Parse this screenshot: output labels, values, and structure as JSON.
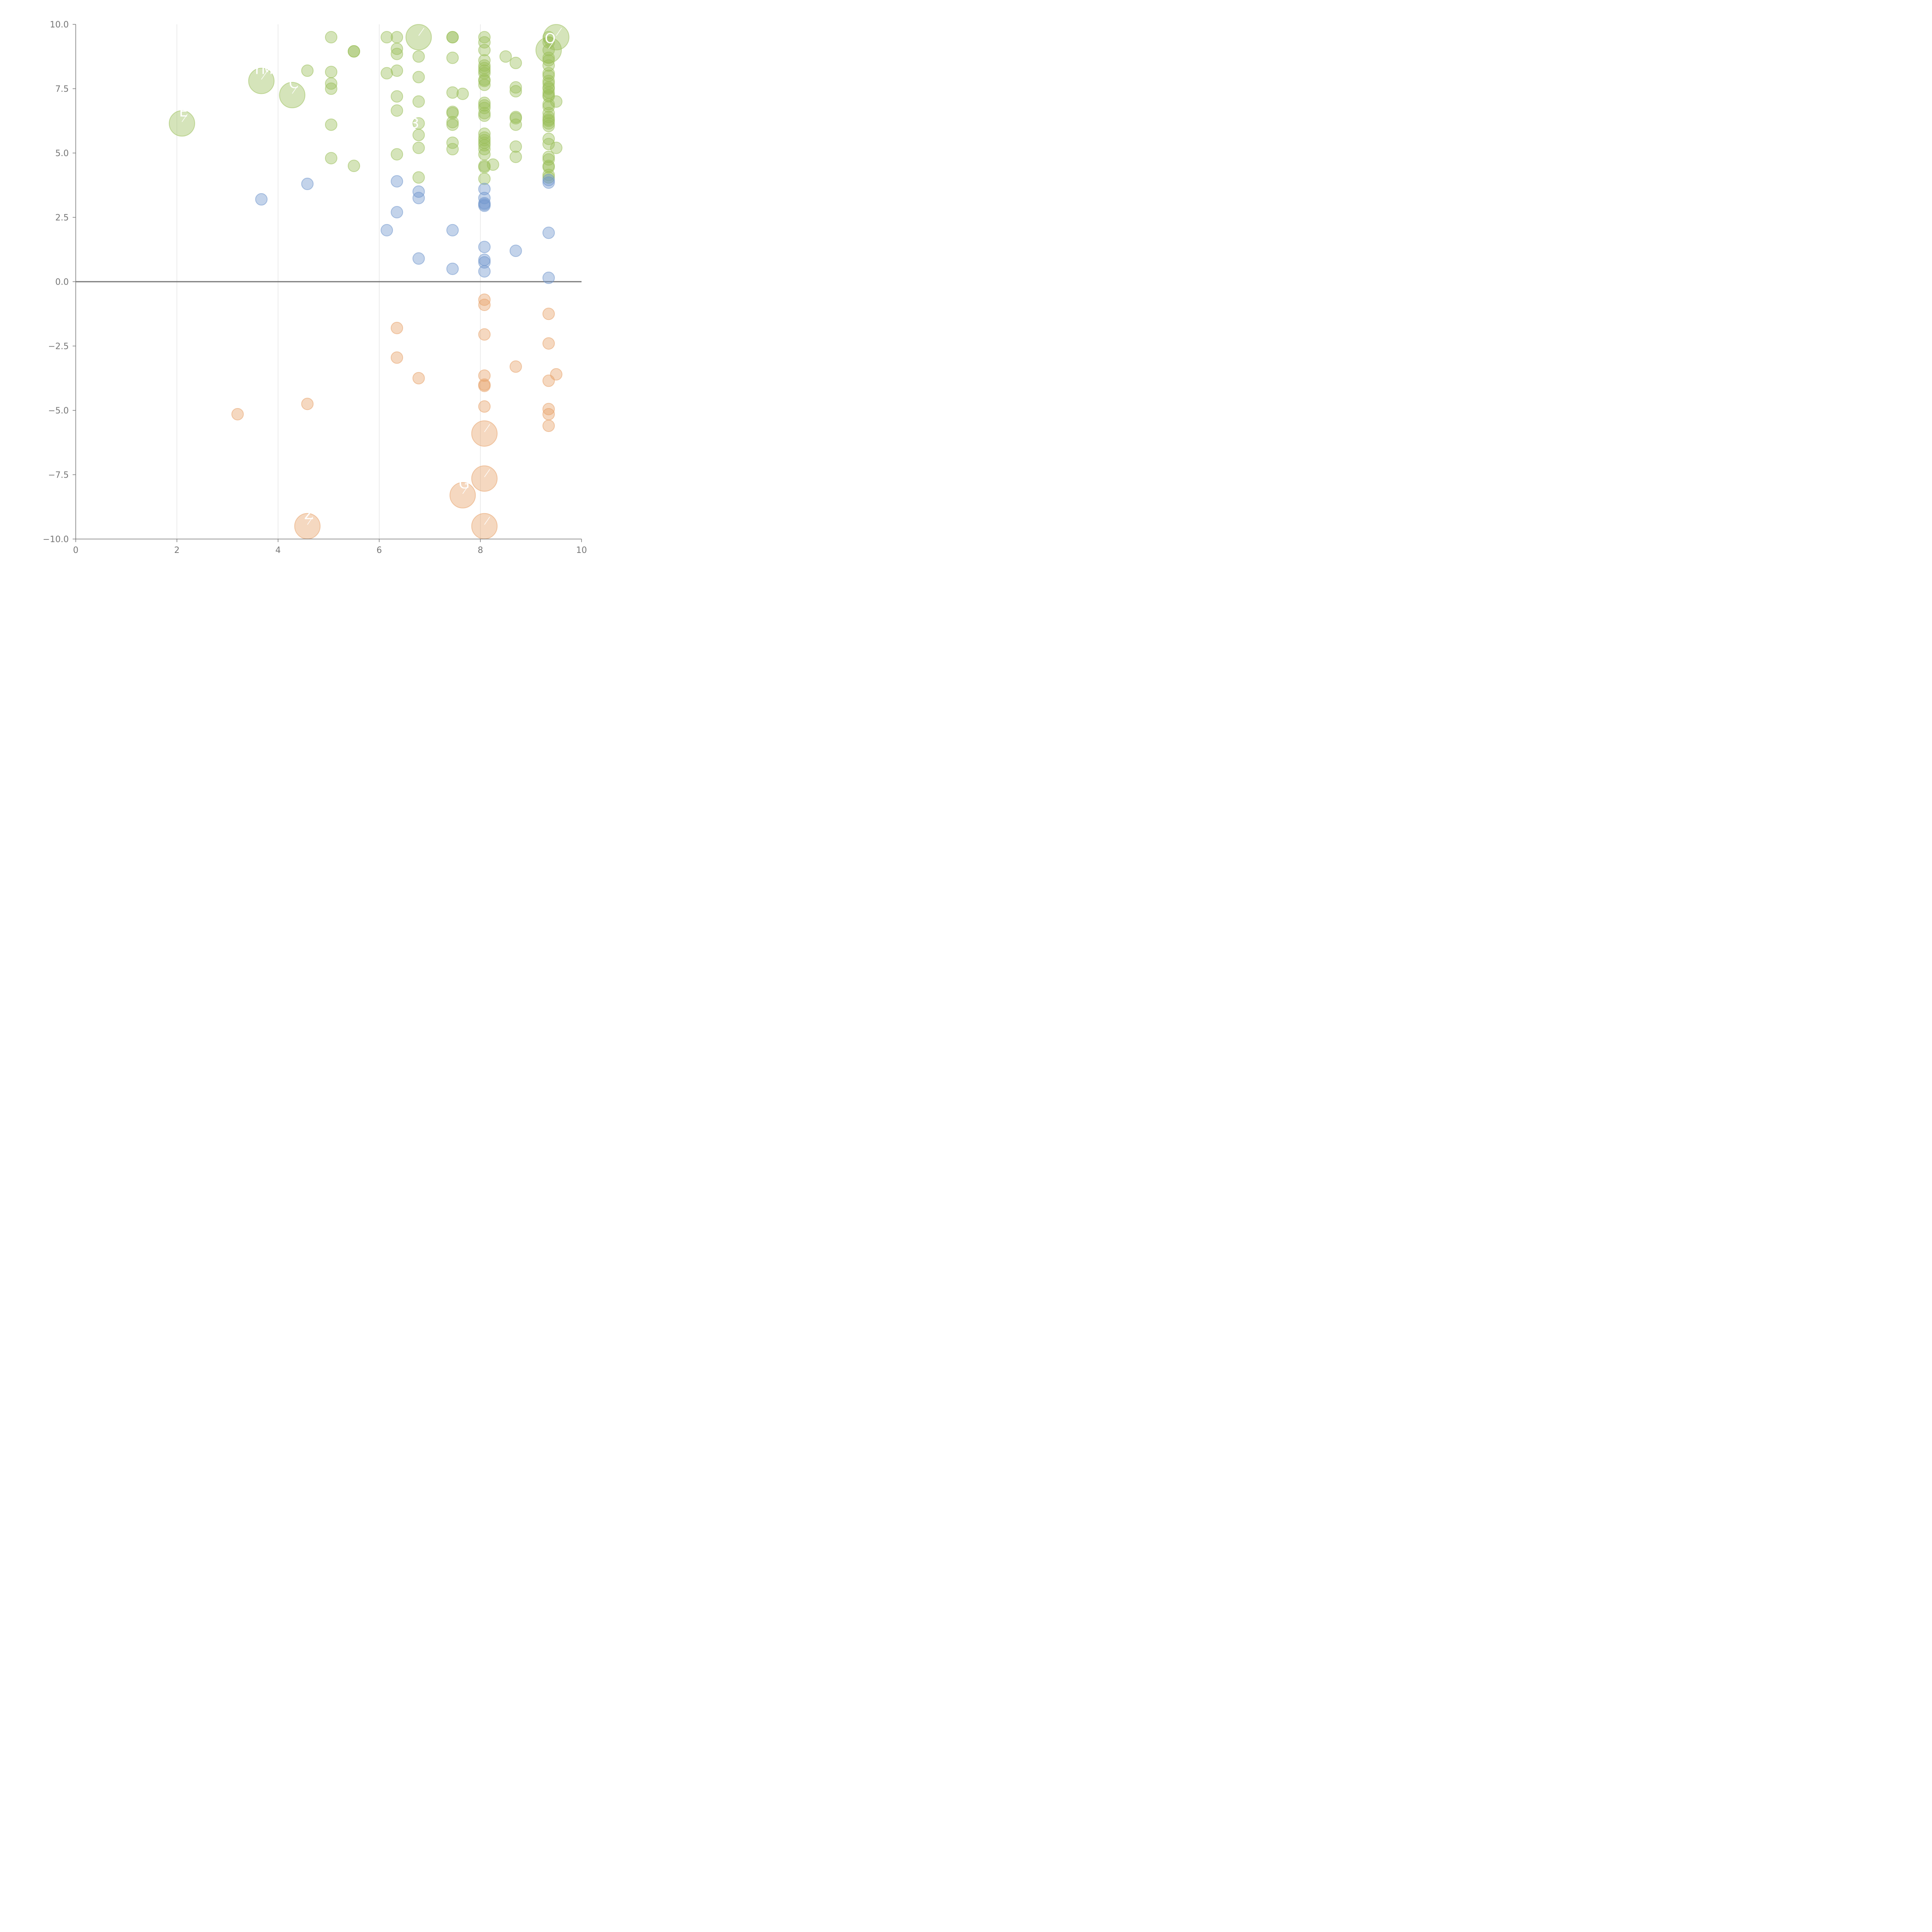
{
  "chart_data": {
    "type": "scatter",
    "title": "",
    "xlabel": "",
    "ylabel": "",
    "xlim": [
      0,
      10
    ],
    "ylim": [
      -10,
      10
    ],
    "x_ticks": [
      0,
      2,
      4,
      6,
      8,
      10
    ],
    "y_ticks": [
      -10,
      -7.5,
      -5,
      -2.5,
      0,
      2.5,
      5,
      7.5,
      10
    ],
    "x_tick_labels": [
      "0",
      "2",
      "4",
      "6",
      "8",
      "10"
    ],
    "y_tick_labels": [
      "−10.0",
      "−7.5",
      "−5.0",
      "−2.5",
      "0.0",
      "2.5",
      "5.0",
      "7.5",
      "10.0"
    ],
    "vertical_gridlines": [
      2,
      4,
      6,
      8
    ],
    "reference_line_y": 0,
    "series": [
      {
        "name": "green",
        "color": "#9bbf5a",
        "points": [
          [
            5.05,
            9.5
          ],
          [
            5.5,
            8.95
          ],
          [
            5.5,
            8.95
          ],
          [
            6.15,
            9.5
          ],
          [
            6.35,
            9.5
          ],
          [
            6.35,
            9.05
          ],
          [
            6.35,
            8.85
          ],
          [
            7.45,
            9.5
          ],
          [
            7.45,
            9.5
          ],
          [
            7.45,
            8.7
          ],
          [
            8.08,
            9.5
          ],
          [
            8.08,
            9.3
          ],
          [
            8.08,
            9.0
          ],
          [
            8.08,
            8.6
          ],
          [
            8.08,
            8.4
          ],
          [
            8.08,
            8.3
          ],
          [
            8.08,
            8.2
          ],
          [
            8.08,
            8.1
          ],
          [
            8.08,
            7.85
          ],
          [
            8.08,
            7.8
          ],
          [
            8.08,
            7.65
          ],
          [
            8.5,
            8.75
          ],
          [
            8.7,
            8.5
          ],
          [
            9.35,
            9.5
          ],
          [
            9.35,
            9.3
          ],
          [
            9.35,
            9.0
          ],
          [
            9.35,
            8.7
          ],
          [
            9.35,
            8.6
          ],
          [
            9.35,
            8.4
          ],
          [
            9.35,
            8.1
          ],
          [
            9.35,
            8.0
          ],
          [
            9.35,
            7.8
          ],
          [
            9.35,
            7.7
          ],
          [
            9.35,
            7.55
          ],
          [
            9.35,
            7.5
          ],
          [
            9.35,
            7.35
          ],
          [
            9.35,
            7.25
          ],
          [
            9.35,
            7.2
          ],
          [
            9.35,
            6.9
          ],
          [
            9.35,
            6.8
          ],
          [
            9.35,
            6.55
          ],
          [
            9.35,
            6.4
          ],
          [
            9.35,
            6.3
          ],
          [
            9.35,
            6.25
          ],
          [
            9.35,
            6.15
          ],
          [
            9.35,
            6.05
          ],
          [
            9.35,
            5.55
          ],
          [
            9.35,
            5.35
          ],
          [
            9.35,
            4.85
          ],
          [
            9.35,
            4.75
          ],
          [
            9.35,
            4.5
          ],
          [
            9.35,
            4.45
          ],
          [
            9.35,
            4.15
          ],
          [
            9.35,
            4.05
          ],
          [
            9.5,
            7.0
          ],
          [
            9.5,
            5.2
          ],
          [
            4.58,
            8.2
          ],
          [
            5.05,
            8.15
          ],
          [
            5.05,
            7.7
          ],
          [
            5.05,
            7.5
          ],
          [
            5.05,
            6.1
          ],
          [
            5.05,
            4.8
          ],
          [
            5.5,
            4.5
          ],
          [
            6.15,
            8.1
          ],
          [
            6.35,
            8.2
          ],
          [
            6.35,
            7.2
          ],
          [
            6.35,
            6.65
          ],
          [
            6.35,
            4.95
          ],
          [
            6.78,
            8.75
          ],
          [
            6.78,
            7.95
          ],
          [
            6.78,
            7.0
          ],
          [
            6.78,
            6.15
          ],
          [
            6.78,
            5.7
          ],
          [
            6.78,
            5.2
          ],
          [
            6.78,
            4.05
          ],
          [
            7.45,
            7.35
          ],
          [
            7.45,
            6.6
          ],
          [
            7.45,
            6.55
          ],
          [
            7.45,
            6.2
          ],
          [
            7.45,
            6.1
          ],
          [
            7.45,
            5.4
          ],
          [
            7.45,
            5.15
          ],
          [
            7.65,
            7.3
          ],
          [
            8.08,
            6.95
          ],
          [
            8.08,
            6.85
          ],
          [
            8.08,
            6.75
          ],
          [
            8.08,
            6.55
          ],
          [
            8.08,
            6.45
          ],
          [
            8.08,
            5.75
          ],
          [
            8.08,
            5.6
          ],
          [
            8.08,
            5.5
          ],
          [
            8.08,
            5.4
          ],
          [
            8.08,
            5.3
          ],
          [
            8.08,
            5.15
          ],
          [
            8.08,
            4.95
          ],
          [
            8.08,
            4.5
          ],
          [
            8.08,
            4.45
          ],
          [
            8.08,
            4.0
          ],
          [
            8.25,
            4.55
          ],
          [
            8.7,
            7.55
          ],
          [
            8.7,
            7.4
          ],
          [
            8.7,
            6.4
          ],
          [
            8.7,
            6.35
          ],
          [
            8.7,
            6.1
          ],
          [
            8.7,
            5.25
          ],
          [
            8.7,
            4.85
          ]
        ]
      },
      {
        "name": "blue",
        "color": "#6f95cc",
        "points": [
          [
            3.67,
            3.2
          ],
          [
            4.58,
            3.8
          ],
          [
            6.15,
            2.0
          ],
          [
            6.35,
            3.9
          ],
          [
            6.35,
            2.7
          ],
          [
            6.78,
            3.5
          ],
          [
            6.78,
            3.25
          ],
          [
            6.78,
            0.9
          ],
          [
            7.45,
            2.0
          ],
          [
            7.45,
            0.5
          ],
          [
            8.08,
            3.6
          ],
          [
            8.08,
            3.25
          ],
          [
            8.08,
            3.05
          ],
          [
            8.08,
            3.0
          ],
          [
            8.08,
            2.95
          ],
          [
            8.08,
            1.35
          ],
          [
            8.08,
            0.85
          ],
          [
            8.08,
            0.75
          ],
          [
            8.08,
            0.4
          ],
          [
            8.7,
            1.2
          ],
          [
            9.35,
            3.95
          ],
          [
            9.35,
            3.85
          ],
          [
            9.35,
            1.9
          ],
          [
            9.35,
            0.15
          ]
        ]
      },
      {
        "name": "orange",
        "color": "#e8a26a",
        "points": [
          [
            3.2,
            -5.15
          ],
          [
            4.58,
            -4.75
          ],
          [
            6.35,
            -1.8
          ],
          [
            6.35,
            -2.95
          ],
          [
            6.78,
            -3.75
          ],
          [
            8.08,
            -0.7
          ],
          [
            8.08,
            -0.9
          ],
          [
            8.08,
            -2.05
          ],
          [
            8.08,
            -3.65
          ],
          [
            8.08,
            -4.0
          ],
          [
            8.08,
            -4.05
          ],
          [
            8.08,
            -4.85
          ],
          [
            8.7,
            -3.3
          ],
          [
            9.35,
            -1.25
          ],
          [
            9.35,
            -2.4
          ],
          [
            9.35,
            -3.85
          ],
          [
            9.35,
            -4.95
          ],
          [
            9.35,
            -5.15
          ],
          [
            9.35,
            -5.6
          ],
          [
            9.5,
            -3.6
          ]
        ]
      }
    ],
    "highlighted_points": [
      {
        "x": 2.1,
        "y": 6.15,
        "series": "green",
        "label": "E"
      },
      {
        "x": 3.67,
        "y": 7.8,
        "series": "green",
        "label": "YM"
      },
      {
        "x": 4.28,
        "y": 7.25,
        "series": "green",
        "label": "C"
      },
      {
        "x": 6.78,
        "y": 9.5,
        "series": "green",
        "label": ""
      },
      {
        "x": 9.35,
        "y": 9.0,
        "series": "green",
        "label": "O"
      },
      {
        "x": 9.5,
        "y": 9.5,
        "series": "green",
        "label": "¯"
      },
      {
        "x": 8.08,
        "y": -5.9,
        "series": "orange",
        "label": "ʼ"
      },
      {
        "x": 8.08,
        "y": -7.65,
        "series": "orange",
        "label": "'"
      },
      {
        "x": 7.65,
        "y": -8.3,
        "series": "orange",
        "label": "G"
      },
      {
        "x": 4.58,
        "y": -9.5,
        "series": "orange",
        "label": "Z"
      },
      {
        "x": 8.08,
        "y": -9.5,
        "series": "orange",
        "label": "'"
      }
    ],
    "floating_labels": [
      {
        "x": 6.78,
        "y": 6.15,
        "text": "3"
      }
    ]
  }
}
